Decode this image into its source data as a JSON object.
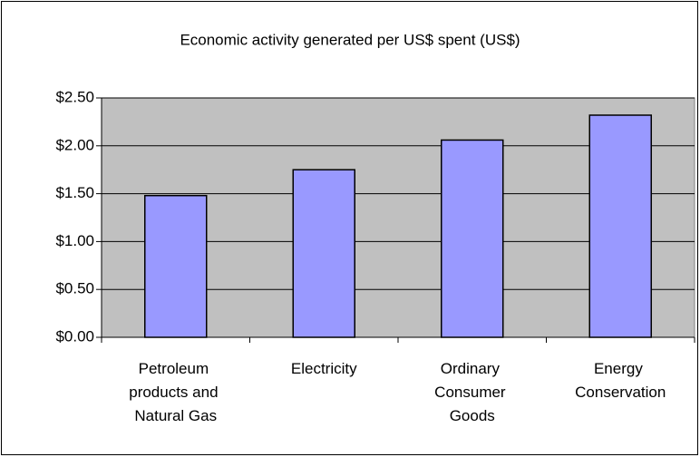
{
  "chart_data": {
    "type": "bar",
    "title": "Economic activity generated per US$ spent (US$)",
    "categories": [
      "Petroleum products and Natural Gas",
      "Electricity",
      "Ordinary Consumer Goods",
      "Energy Conservation"
    ],
    "values": [
      1.48,
      1.75,
      2.06,
      2.32
    ],
    "color": "#9999ff",
    "ylim": [
      0,
      2.5
    ],
    "yticks": [
      {
        "value": 0,
        "label": "$0.00"
      },
      {
        "value": 0.5,
        "label": "$0.50"
      },
      {
        "value": 1,
        "label": "$1.00"
      },
      {
        "value": 1.5,
        "label": "$1.50"
      },
      {
        "value": 2,
        "label": "$2.00"
      },
      {
        "value": 2.5,
        "label": "$2.50"
      }
    ],
    "grid": true
  }
}
